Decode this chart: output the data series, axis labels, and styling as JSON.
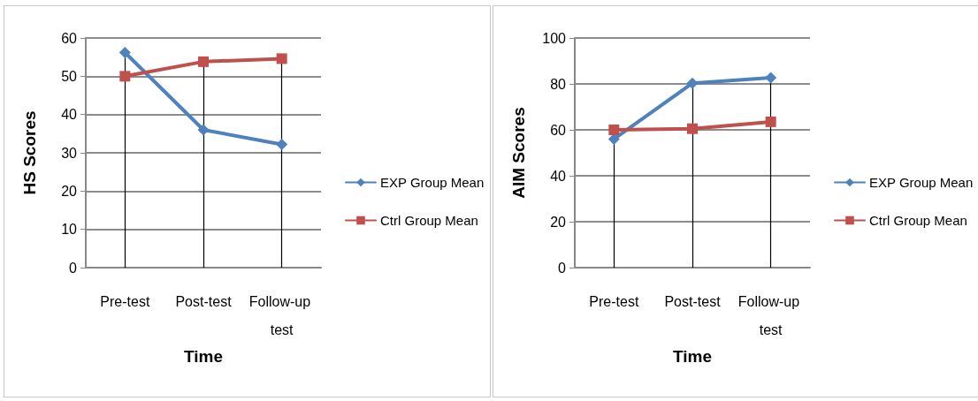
{
  "chart_data": [
    {
      "type": "line",
      "xlabel": "Time",
      "ylabel": "HS Scores",
      "categories": [
        "Pre-test",
        "Post-test",
        "Follow-up test"
      ],
      "series": [
        {
          "name": "EXP Group Mean",
          "color": "#4f81bd",
          "marker": "diamond",
          "values": [
            56.2,
            36,
            32.2
          ]
        },
        {
          "name": "Ctrl Group Mean",
          "color": "#c0504d",
          "marker": "square",
          "values": [
            50,
            53.8,
            54.6
          ]
        }
      ],
      "ref_lines": [
        {
          "axis": "x",
          "value": "Pre-test",
          "color": "#000000"
        },
        {
          "axis": "x",
          "value": "Post-test",
          "color": "#000000"
        },
        {
          "axis": "x",
          "value": "Follow-up test",
          "color": "#000000"
        }
      ],
      "ylim": [
        0,
        60
      ],
      "yticks": [
        0,
        10,
        20,
        30,
        40,
        50,
        60
      ],
      "grid": "y",
      "legend": "right"
    },
    {
      "type": "line",
      "xlabel": "Time",
      "ylabel": "AIM Scores",
      "categories": [
        "Pre-test",
        "Post-test",
        "Follow-up test"
      ],
      "series": [
        {
          "name": "EXP Group Mean",
          "color": "#4f81bd",
          "marker": "diamond",
          "values": [
            56,
            80.3,
            82.7
          ]
        },
        {
          "name": "Ctrl Group Mean",
          "color": "#c0504d",
          "marker": "square",
          "values": [
            60,
            60.5,
            63.5
          ]
        }
      ],
      "ref_lines": [
        {
          "axis": "x",
          "value": "Pre-test",
          "color": "#000000"
        },
        {
          "axis": "x",
          "value": "Post-test",
          "color": "#000000"
        },
        {
          "axis": "x",
          "value": "Follow-up test",
          "color": "#000000"
        }
      ],
      "ylim": [
        0,
        100
      ],
      "yticks": [
        0,
        20,
        40,
        60,
        80,
        100
      ],
      "grid": "y",
      "legend": "right"
    }
  ]
}
